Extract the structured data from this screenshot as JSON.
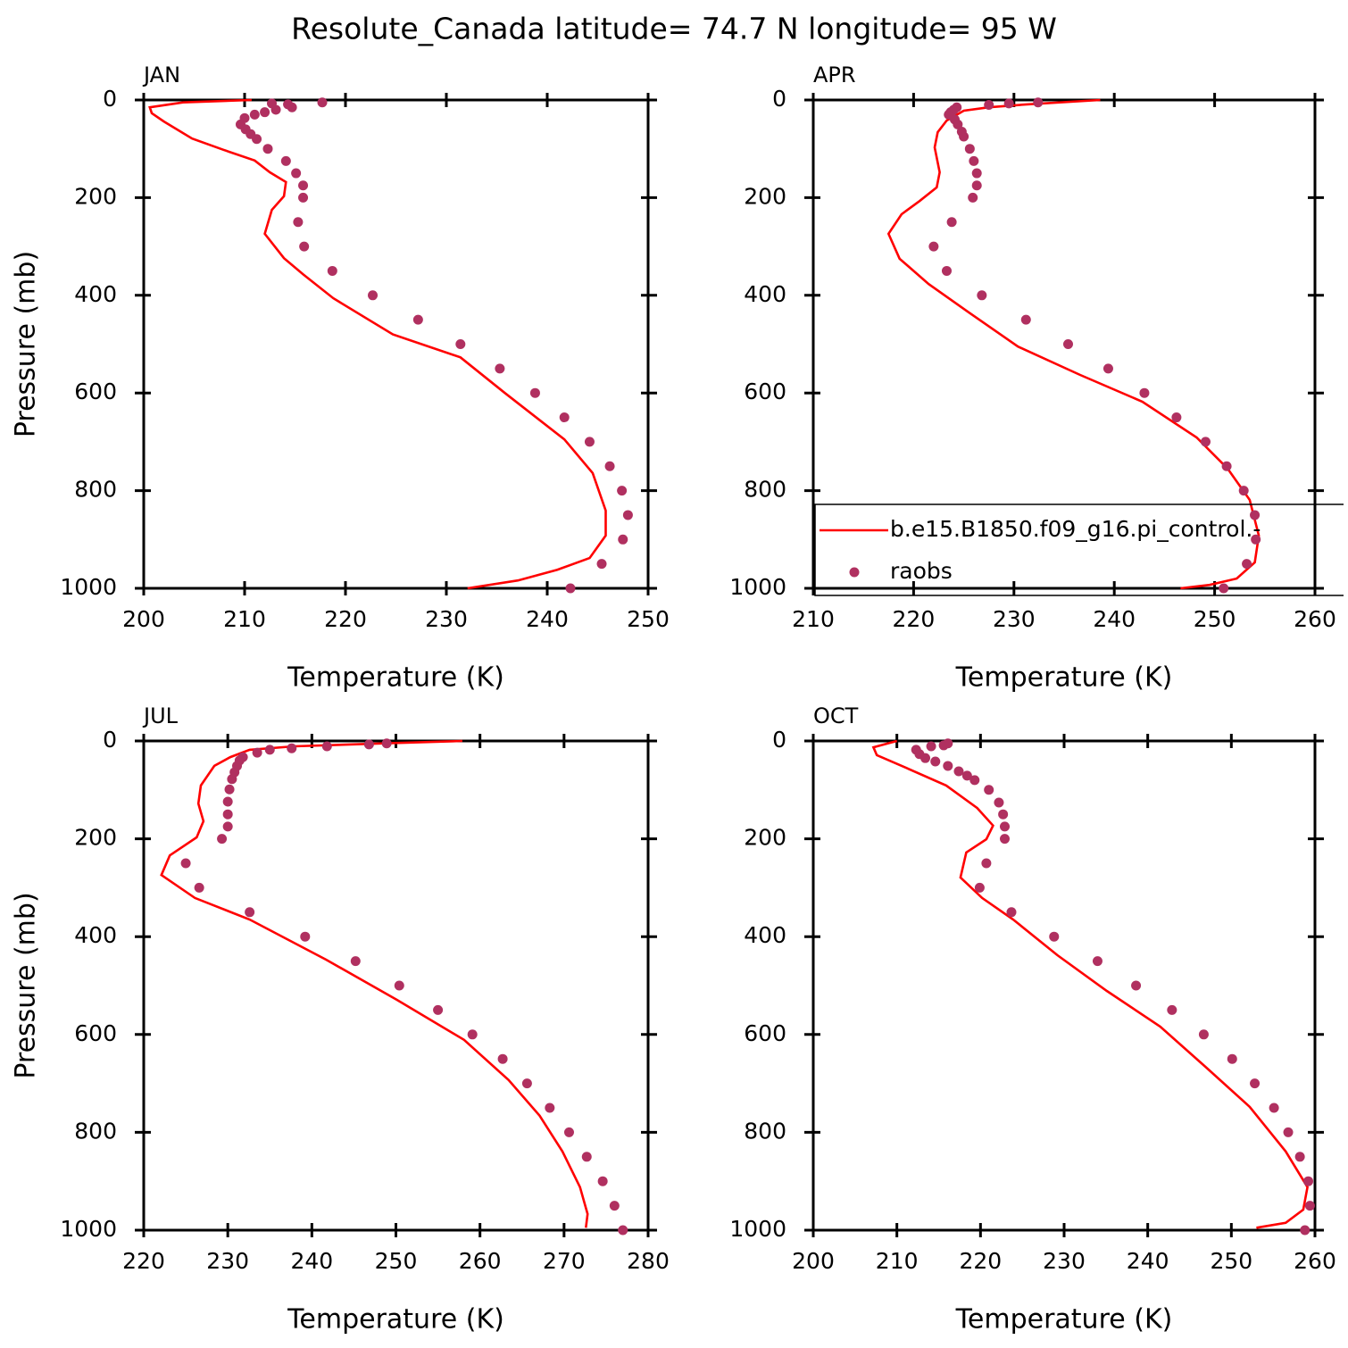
{
  "title": "Resolute_Canada  latitude= 74.7 N longitude= 95 W",
  "chart_data": [
    {
      "type": "line",
      "title": "JAN",
      "x_label": "Temperature (K)",
      "y_label": "Pressure (mb)",
      "xlim": [
        200,
        250
      ],
      "xticks": [
        200,
        210,
        220,
        230,
        240,
        250
      ],
      "ylim": [
        1000,
        0
      ],
      "yticks": [
        0,
        200,
        400,
        600,
        800,
        1000
      ],
      "series": [
        {
          "color": "#ff0000",
          "mode": "line",
          "x": [
            210.7,
            203.9,
            200.6,
            200.8,
            202.0,
            204.8,
            207.9,
            211.0,
            212.5,
            214.1,
            213.9,
            212.7,
            212.0,
            213.9,
            215.8,
            218.8,
            224.7,
            231.4,
            235.8,
            241.7,
            244.5,
            245.8,
            245.8,
            244.2,
            241.0,
            237.1,
            232.1
          ],
          "y": [
            0,
            5,
            15,
            27,
            44,
            79,
            102,
            124,
            148,
            168,
            197,
            225,
            274,
            324,
            357,
            406,
            480,
            527,
            600,
            695,
            764,
            841,
            892,
            938,
            962,
            984,
            1000
          ]
        },
        {
          "color": "#b03060",
          "mode": "markers",
          "x": [
            217.7,
            214.3,
            214.7,
            212.7,
            213.1,
            212.0,
            211.0,
            210.0,
            209.6,
            210.1,
            210.6,
            211.2,
            212.3,
            214.1,
            215.1,
            215.8,
            215.8,
            215.3,
            215.9,
            218.7,
            222.7,
            227.2,
            231.4,
            235.3,
            238.8,
            241.7,
            244.2,
            246.2,
            247.4,
            248.0,
            247.5,
            245.4,
            242.3
          ],
          "y": [
            5,
            9,
            15,
            7,
            20,
            25,
            30,
            37,
            50,
            60,
            70,
            80,
            100,
            125,
            150,
            175,
            200,
            250,
            300,
            350,
            400,
            450,
            500,
            550,
            600,
            650,
            700,
            750,
            800,
            850,
            900,
            950,
            1000
          ]
        }
      ]
    },
    {
      "type": "line",
      "title": "APR",
      "x_label": "Temperature (K)",
      "legend": true,
      "xlim": [
        210,
        260
      ],
      "xticks": [
        210,
        220,
        230,
        240,
        250,
        260
      ],
      "ylim": [
        1000,
        0
      ],
      "yticks": [
        0,
        200,
        400,
        600,
        800,
        1000
      ],
      "series": [
        {
          "name": "b.e15.B1850.f09_g16.pi_control.-",
          "color": "#ff0000",
          "mode": "line",
          "x": [
            238.6,
            231.3,
            227.5,
            225.0,
            223.3,
            222.4,
            222.1,
            222.6,
            222.3,
            220.6,
            218.8,
            217.5,
            218.6,
            221.5,
            225.5,
            230.4,
            236.6,
            242.8,
            248.2,
            251.3,
            253.5,
            254.4,
            254.0,
            252.2,
            249.5,
            246.6
          ],
          "y": [
            0,
            9,
            15,
            22,
            42,
            66,
            97,
            148,
            179,
            207,
            234,
            274,
            325,
            377,
            435,
            505,
            563,
            618,
            691,
            755,
            819,
            892,
            947,
            980,
            993,
            1000
          ]
        },
        {
          "name": "raobs",
          "color": "#b03060",
          "mode": "markers",
          "x": [
            232.4,
            229.5,
            227.5,
            224.3,
            224.0,
            223.7,
            223.5,
            224.1,
            224.4,
            224.8,
            225.0,
            225.6,
            226.0,
            226.3,
            226.3,
            225.9,
            223.8,
            222.0,
            223.3,
            226.8,
            231.2,
            235.4,
            239.4,
            243.0,
            246.2,
            249.1,
            251.2,
            252.9,
            254.0,
            254.1,
            253.2,
            250.9
          ],
          "y": [
            5,
            7,
            10,
            15,
            20,
            25,
            30,
            40,
            50,
            65,
            75,
            100,
            125,
            150,
            175,
            200,
            250,
            300,
            350,
            400,
            450,
            500,
            550,
            600,
            650,
            700,
            750,
            800,
            850,
            900,
            950,
            1000
          ]
        }
      ]
    },
    {
      "type": "line",
      "title": "JUL",
      "x_label": "Temperature (K)",
      "y_label": "Pressure (mb)",
      "xlim": [
        220,
        280
      ],
      "xticks": [
        220,
        230,
        240,
        250,
        260,
        270,
        280
      ],
      "ylim": [
        1000,
        0
      ],
      "yticks": [
        0,
        200,
        400,
        600,
        800,
        1000
      ],
      "series": [
        {
          "color": "#ff0000",
          "mode": "line",
          "x": [
            257.9,
            248.6,
            237.9,
            232.6,
            230.3,
            228.4,
            226.8,
            226.5,
            227.1,
            226.3,
            223.1,
            222.1,
            226.1,
            232.6,
            241.7,
            250.1,
            258.1,
            263.4,
            267.1,
            269.8,
            271.9,
            272.8,
            272.6
          ],
          "y": [
            0,
            5,
            11,
            18,
            33,
            51,
            91,
            128,
            164,
            197,
            234,
            274,
            321,
            365,
            447,
            529,
            611,
            693,
            766,
            839,
            912,
            967,
            995
          ]
        },
        {
          "color": "#b03060",
          "mode": "markers",
          "x": [
            248.9,
            246.8,
            241.8,
            237.6,
            235.0,
            233.5,
            231.8,
            231.4,
            231.1,
            230.8,
            230.5,
            230.2,
            230.0,
            230.0,
            230.0,
            229.3,
            225.0,
            226.6,
            232.6,
            239.2,
            245.2,
            250.4,
            255.0,
            259.1,
            262.7,
            265.6,
            268.3,
            270.6,
            272.7,
            274.6,
            276.0,
            277.0
          ],
          "y": [
            5,
            7,
            11,
            15,
            18,
            24,
            33,
            40,
            51,
            64,
            78,
            99,
            124,
            150,
            175,
            200,
            250,
            300,
            350,
            400,
            450,
            500,
            550,
            600,
            650,
            700,
            750,
            800,
            850,
            900,
            950,
            1000
          ]
        }
      ]
    },
    {
      "type": "line",
      "title": "OCT",
      "x_label": "Temperature (K)",
      "xlim": [
        200,
        260
      ],
      "xticks": [
        200,
        210,
        220,
        230,
        240,
        250,
        260
      ],
      "ylim": [
        1000,
        0
      ],
      "yticks": [
        0,
        200,
        400,
        600,
        800,
        1000
      ],
      "series": [
        {
          "color": "#ff0000",
          "mode": "line",
          "x": [
            210.0,
            207.2,
            207.6,
            211.1,
            215.9,
            219.6,
            221.5,
            220.7,
            218.3,
            217.6,
            220.2,
            223.9,
            229.2,
            235.1,
            241.5,
            246.9,
            252.2,
            256.5,
            259.1,
            258.6,
            256.5,
            253.0
          ],
          "y": [
            0,
            13,
            29,
            55,
            91,
            137,
            173,
            201,
            228,
            279,
            321,
            365,
            438,
            511,
            584,
            666,
            748,
            839,
            912,
            958,
            985,
            995
          ]
        },
        {
          "color": "#b03060",
          "mode": "markers",
          "x": [
            216.1,
            215.6,
            214.1,
            212.3,
            212.7,
            213.4,
            214.6,
            216.1,
            217.4,
            218.4,
            219.3,
            221.0,
            222.2,
            222.7,
            222.9,
            222.9,
            220.7,
            219.9,
            223.7,
            228.8,
            234.0,
            238.6,
            242.9,
            246.7,
            250.1,
            252.8,
            255.1,
            256.8,
            258.2,
            259.2,
            259.4,
            258.8
          ],
          "y": [
            5,
            9,
            11,
            18,
            27,
            35,
            42,
            51,
            62,
            71,
            80,
            100,
            126,
            150,
            175,
            200,
            250,
            300,
            350,
            400,
            450,
            500,
            550,
            600,
            650,
            700,
            750,
            800,
            850,
            900,
            950,
            1000
          ]
        }
      ]
    }
  ]
}
